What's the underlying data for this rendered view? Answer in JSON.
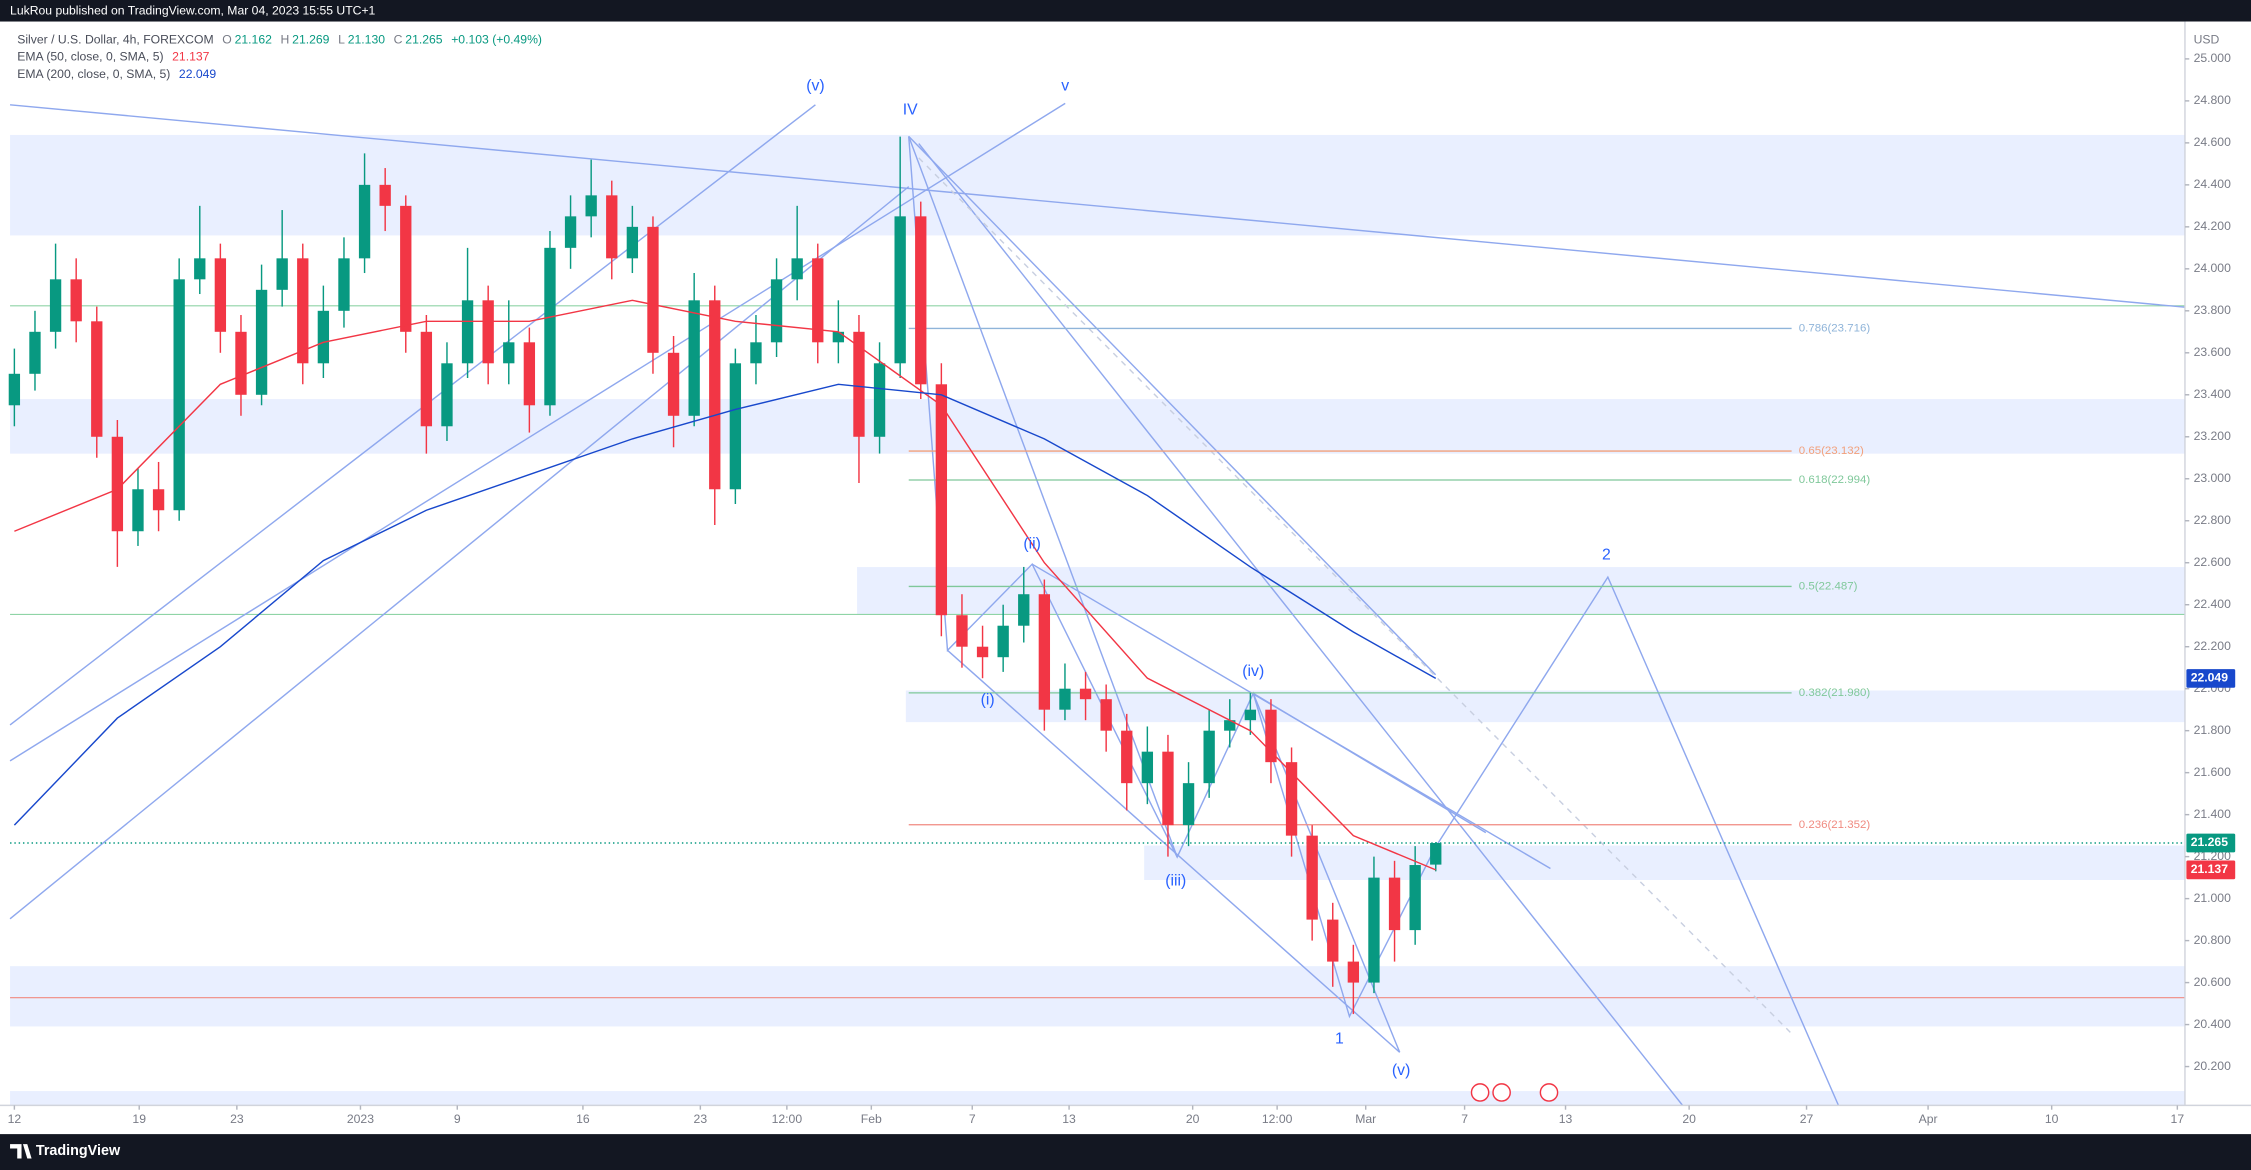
{
  "chart_data": {
    "type": "candlestick",
    "publisher": "LukRou published on TradingView.com, Mar 04, 2023 15:55 UTC+1",
    "title": "Silver / U.S. Dollar, 4h, FOREXCOM",
    "ohlc_legend": [
      {
        "label": "O",
        "value": "21.162"
      },
      {
        "label": "H",
        "value": "21.269"
      },
      {
        "label": "L",
        "value": "21.130"
      },
      {
        "label": "C",
        "value": "21.265"
      }
    ],
    "change": "+0.103 (+0.49%)",
    "up_color": "#089981",
    "down_color": "#f23645",
    "open": [
      23.35,
      23.5,
      23.7,
      23.95,
      23.75,
      23.2,
      22.75,
      22.95,
      22.85,
      23.95,
      24.05,
      23.7,
      23.4,
      23.9,
      24.05,
      23.55,
      23.8,
      24.05,
      24.4,
      24.3,
      23.7,
      23.25,
      23.55,
      23.85,
      23.55,
      23.65,
      23.35,
      24.1,
      24.25,
      24.35,
      24.05,
      24.2,
      23.6,
      23.3,
      23.85,
      22.95,
      23.55,
      23.65,
      23.95,
      24.05,
      23.65,
      23.7,
      23.2,
      23.55,
      24.25,
      23.45,
      22.35,
      22.2,
      22.15,
      22.3,
      22.45,
      21.9,
      22.0,
      21.95,
      21.8,
      21.55,
      21.7,
      21.35,
      21.55,
      21.8,
      21.85,
      21.9,
      21.65,
      21.3,
      20.9,
      20.7,
      20.6,
      21.1,
      20.85,
      21.162
    ],
    "high": [
      23.62,
      23.8,
      24.12,
      24.05,
      23.82,
      23.28,
      23.05,
      23.08,
      24.05,
      24.3,
      24.12,
      23.78,
      24.02,
      24.28,
      24.12,
      23.92,
      24.15,
      24.55,
      24.48,
      24.35,
      23.78,
      23.65,
      24.1,
      23.92,
      23.85,
      23.72,
      24.18,
      24.35,
      24.52,
      24.42,
      24.3,
      24.25,
      23.68,
      23.98,
      23.92,
      23.62,
      23.78,
      24.05,
      24.3,
      24.12,
      23.85,
      23.78,
      23.65,
      24.63,
      24.32,
      23.55,
      22.45,
      22.3,
      22.4,
      22.58,
      22.52,
      22.12,
      22.08,
      22.02,
      21.88,
      21.82,
      21.78,
      21.65,
      21.9,
      21.95,
      21.98,
      21.95,
      21.72,
      21.35,
      20.98,
      20.78,
      21.2,
      21.18,
      21.25,
      21.269
    ],
    "low": [
      23.25,
      23.42,
      23.62,
      23.65,
      23.1,
      22.58,
      22.68,
      22.75,
      22.8,
      23.88,
      23.6,
      23.3,
      23.35,
      23.82,
      23.45,
      23.48,
      23.72,
      23.98,
      24.18,
      23.6,
      23.12,
      23.18,
      23.48,
      23.45,
      23.45,
      23.22,
      23.3,
      24.0,
      24.15,
      23.95,
      23.98,
      23.5,
      23.15,
      23.25,
      22.78,
      22.88,
      23.45,
      23.58,
      23.85,
      23.55,
      23.55,
      22.98,
      23.12,
      23.48,
      23.38,
      22.25,
      22.1,
      22.05,
      22.08,
      22.22,
      21.8,
      21.85,
      21.85,
      21.7,
      21.42,
      21.45,
      21.2,
      21.25,
      21.48,
      21.72,
      21.78,
      21.55,
      21.2,
      20.8,
      20.58,
      20.45,
      20.55,
      20.7,
      20.78,
      21.13
    ],
    "close": [
      23.5,
      23.7,
      23.95,
      23.75,
      23.2,
      22.75,
      22.95,
      22.85,
      23.95,
      24.05,
      23.7,
      23.4,
      23.9,
      24.05,
      23.55,
      23.8,
      24.05,
      24.4,
      24.3,
      23.7,
      23.25,
      23.55,
      23.85,
      23.55,
      23.65,
      23.35,
      24.1,
      24.25,
      24.35,
      24.05,
      24.2,
      23.6,
      23.3,
      23.85,
      22.95,
      23.55,
      23.65,
      23.95,
      24.05,
      23.65,
      23.7,
      23.2,
      23.55,
      24.25,
      23.45,
      22.35,
      22.2,
      22.15,
      22.3,
      22.45,
      21.9,
      22.0,
      21.95,
      21.8,
      21.55,
      21.7,
      21.35,
      21.55,
      21.8,
      21.85,
      21.9,
      21.65,
      21.3,
      20.9,
      20.7,
      20.6,
      21.1,
      20.85,
      21.16,
      21.265
    ],
    "series": [
      {
        "name": "EMA (50, close, 0, SMA, 5)",
        "color": "#f23645",
        "x": [
          0,
          5,
          10,
          15,
          20,
          25,
          30,
          35,
          40,
          45,
          50,
          55,
          60,
          65,
          69
        ],
        "values": [
          22.75,
          22.95,
          23.45,
          23.65,
          23.75,
          23.75,
          23.85,
          23.75,
          23.7,
          23.35,
          22.6,
          22.05,
          21.8,
          21.3,
          21.137
        ]
      },
      {
        "name": "EMA (200, close, 0, SMA, 5)",
        "color": "#1848cc",
        "x": [
          0,
          5,
          10,
          15,
          20,
          25,
          30,
          35,
          40,
          45,
          50,
          55,
          60,
          65,
          69
        ],
        "values": [
          21.35,
          21.86,
          22.2,
          22.61,
          22.85,
          23.02,
          23.19,
          23.33,
          23.45,
          23.4,
          23.19,
          22.92,
          22.58,
          22.27,
          22.049
        ]
      }
    ],
    "xlim": [
      -0.21,
      105.37
    ],
    "xticks": [
      {
        "value": 0,
        "label": "12"
      },
      {
        "value": 6.06,
        "label": "19"
      },
      {
        "value": 10.8,
        "label": "23"
      },
      {
        "value": 16.8,
        "label": "2023"
      },
      {
        "value": 21.5,
        "label": "9"
      },
      {
        "value": 27.6,
        "label": "16"
      },
      {
        "value": 33.3,
        "label": "23"
      },
      {
        "value": 37.5,
        "label": "12:00"
      },
      {
        "value": 41.6,
        "label": "Feb"
      },
      {
        "value": 46.5,
        "label": "7"
      },
      {
        "value": 51.2,
        "label": "13"
      },
      {
        "value": 57.2,
        "label": "20"
      },
      {
        "value": 61.3,
        "label": "12:00"
      },
      {
        "value": 65.6,
        "label": "Mar"
      },
      {
        "value": 70.4,
        "label": "7"
      },
      {
        "value": 75.3,
        "label": "13"
      },
      {
        "value": 81.3,
        "label": "20"
      },
      {
        "value": 87.0,
        "label": "27"
      },
      {
        "value": 92.9,
        "label": "Apr"
      },
      {
        "value": 98.9,
        "label": "10"
      },
      {
        "value": 105.0,
        "label": "17"
      }
    ],
    "ylim": [
      20.015,
      25.178
    ],
    "yticks": [
      {
        "value": 20.2,
        "label": "20.200"
      },
      {
        "value": 20.4,
        "label": "20.400"
      },
      {
        "value": 20.6,
        "label": "20.600"
      },
      {
        "value": 20.8,
        "label": "20.800"
      },
      {
        "value": 21,
        "label": "21.000"
      },
      {
        "value": 21.2,
        "label": "21.200"
      },
      {
        "value": 21.4,
        "label": "21.400"
      },
      {
        "value": 21.6,
        "label": "21.600"
      },
      {
        "value": 21.8,
        "label": "21.800"
      },
      {
        "value": 22,
        "label": "22.000"
      },
      {
        "value": 22.2,
        "label": "22.200"
      },
      {
        "value": 22.4,
        "label": "22.400"
      },
      {
        "value": 22.6,
        "label": "22.600"
      },
      {
        "value": 22.8,
        "label": "22.800"
      },
      {
        "value": 23,
        "label": "23.000"
      },
      {
        "value": 23.2,
        "label": "23.200"
      },
      {
        "value": 23.4,
        "label": "23.400"
      },
      {
        "value": 23.6,
        "label": "23.600"
      },
      {
        "value": 23.8,
        "label": "23.800"
      },
      {
        "value": 24,
        "label": "24.000"
      },
      {
        "value": 24.2,
        "label": "24.200"
      },
      {
        "value": 24.4,
        "label": "24.400"
      },
      {
        "value": 24.6,
        "label": "24.600"
      },
      {
        "value": 24.8,
        "label": "24.800"
      },
      {
        "value": 25,
        "label": "25.000"
      }
    ],
    "y_unit": "USD",
    "fib_levels": [
      {
        "label": "0.786(23.716)",
        "value": 23.716,
        "color": "#8fb4d9"
      },
      {
        "label": "0.65(23.132)",
        "value": 23.132,
        "color": "#f2a07b"
      },
      {
        "label": "0.618(22.994)",
        "value": 22.994,
        "color": "#7fc89a"
      },
      {
        "label": "0.5(22.487)",
        "value": 22.487,
        "color": "#7fc89a"
      },
      {
        "label": "0.382(21.980)",
        "value": 21.98,
        "color": "#7fc89a"
      },
      {
        "label": "0.236(21.352)",
        "value": 21.352,
        "color": "#f08a80"
      }
    ],
    "wave_labels": [
      "(v)",
      "IV",
      "v",
      "(ii)",
      "(i)",
      "(iv)",
      "(iii)",
      "1",
      "(v)",
      "2"
    ],
    "brand": "TradingView"
  }
}
